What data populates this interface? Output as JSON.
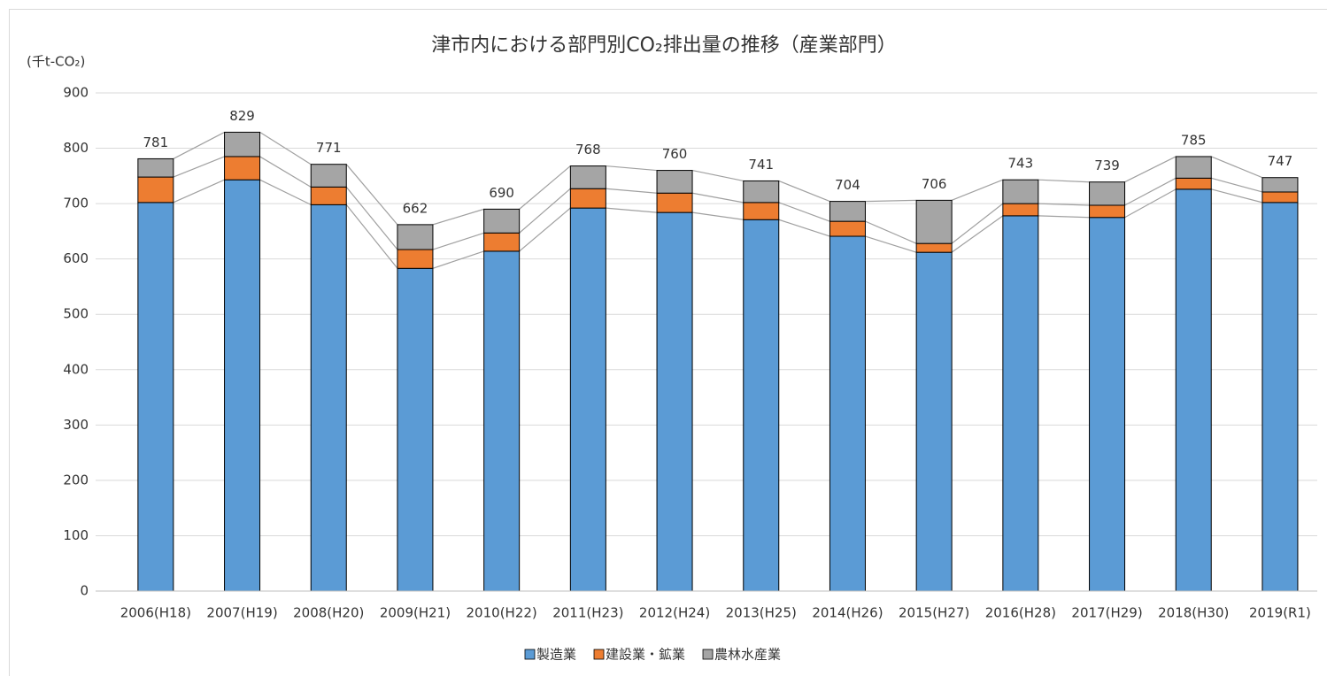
{
  "chart_data": {
    "type": "stacked_bar",
    "title": "津市内における部門別CO₂排出量の推移（産業部門）",
    "y_label": "(千t-CO₂)",
    "categories": [
      "2006(H18)",
      "2007(H19)",
      "2008(H20)",
      "2009(H21)",
      "2010(H22)",
      "2011(H23)",
      "2012(H24)",
      "2013(H25)",
      "2014(H26)",
      "2015(H27)",
      "2016(H28)",
      "2017(H29)",
      "2018(H30)",
      "2019(R1)"
    ],
    "series": [
      {
        "name": "製造業",
        "color": "#5b9bd5",
        "values": [
          702,
          743,
          698,
          583,
          614,
          692,
          684,
          671,
          641,
          612,
          678,
          675,
          726,
          702
        ]
      },
      {
        "name": "建設業・鉱業",
        "color": "#ed7d31",
        "values": [
          46,
          42,
          32,
          34,
          33,
          35,
          35,
          31,
          27,
          16,
          22,
          22,
          20,
          19
        ]
      },
      {
        "name": "農林水産業",
        "color": "#a5a5a5",
        "values": [
          33,
          44,
          41,
          45,
          43,
          41,
          41,
          39,
          36,
          78,
          43,
          42,
          39,
          26
        ]
      }
    ],
    "totals": [
      781,
      829,
      771,
      662,
      690,
      768,
      760,
      741,
      704,
      706,
      743,
      739,
      785,
      747
    ],
    "ylim": [
      0,
      900
    ],
    "yticks": [
      0,
      100,
      200,
      300,
      400,
      500,
      600,
      700,
      800,
      900
    ],
    "grid": true,
    "legend": "bottom"
  }
}
